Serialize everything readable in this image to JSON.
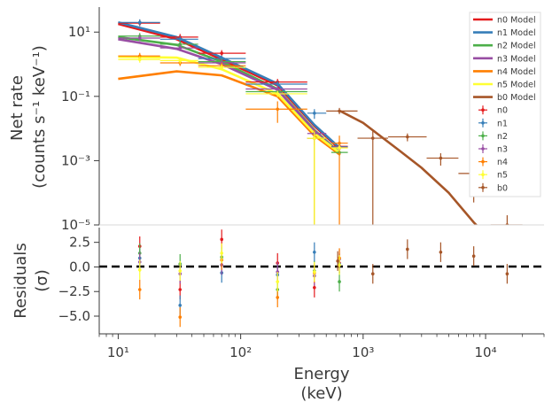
{
  "chart_data": [
    {
      "type": "scatter",
      "panel": "top",
      "title": "",
      "ylabel": [
        "Net rate",
        "(counts s⁻¹ keV⁻¹)"
      ],
      "xscale": "log",
      "yscale": "log",
      "xlim": [
        7,
        30000
      ],
      "ylim": [
        1e-05,
        60
      ],
      "yticks": [
        {
          "v": 10,
          "label": "10¹"
        },
        {
          "v": 0.1,
          "label": "10⁻¹"
        },
        {
          "v": 0.001,
          "label": "10⁻³"
        },
        {
          "v": 1e-05,
          "label": "10⁻⁵"
        }
      ],
      "legend": {
        "placement": "upper-right",
        "entries": [
          "n0 Model",
          "n1 Model",
          "n2 Model",
          "n3 Model",
          "n4 Model",
          "n5 Model",
          "b0 Model",
          "n0",
          "n1",
          "n2",
          "n3",
          "n4",
          "n5",
          "b0"
        ]
      },
      "models": [
        {
          "name": "n0 Model",
          "color": "#e41a1c",
          "x": [
            10,
            30,
            70,
            200,
            400,
            650
          ],
          "y": [
            18,
            6,
            1.4,
            0.22,
            0.012,
            0.0022
          ]
        },
        {
          "name": "n1 Model",
          "color": "#377eb8",
          "x": [
            10,
            30,
            70,
            200,
            400,
            650
          ],
          "y": [
            20,
            7,
            1.6,
            0.25,
            0.013,
            0.0024
          ]
        },
        {
          "name": "n2 Model",
          "color": "#4daf4a",
          "x": [
            10,
            30,
            70,
            200,
            400,
            650
          ],
          "y": [
            7,
            4,
            1.2,
            0.17,
            0.009,
            0.0017
          ]
        },
        {
          "name": "n3 Model",
          "color": "#984ea3",
          "x": [
            10,
            30,
            70,
            200,
            400,
            650
          ],
          "y": [
            6,
            3,
            1.0,
            0.16,
            0.0085,
            0.0016
          ]
        },
        {
          "name": "n4 Model",
          "color": "#ff7f00",
          "x": [
            10,
            30,
            70,
            200,
            400,
            650
          ],
          "y": [
            0.35,
            0.6,
            0.45,
            0.1,
            0.006,
            0.0015
          ]
        },
        {
          "name": "n5 Model",
          "color": "#ffff33",
          "x": [
            10,
            30,
            70,
            200,
            400,
            650
          ],
          "y": [
            1.7,
            1.6,
            0.7,
            0.12,
            0.007,
            0.0017
          ]
        },
        {
          "name": "b0 Model",
          "color": "#a65628",
          "x": [
            650,
            1000,
            2000,
            3000,
            5000,
            8000,
            15000
          ],
          "y": [
            0.035,
            0.015,
            0.002,
            0.0006,
            0.0001,
            1.2e-05,
            1e-06
          ]
        }
      ],
      "points": [
        {
          "series": "n0",
          "color": "#e41a1c",
          "x": 15,
          "xlo": 10,
          "xhi": 22,
          "y": 19
        },
        {
          "series": "n0",
          "color": "#e41a1c",
          "x": 32,
          "xlo": 22,
          "xhi": 45,
          "y": 7
        },
        {
          "series": "n0",
          "color": "#e41a1c",
          "x": 70,
          "xlo": 45,
          "xhi": 110,
          "y": 2.2
        },
        {
          "series": "n0",
          "color": "#e41a1c",
          "x": 200,
          "xlo": 110,
          "xhi": 350,
          "y": 0.28
        },
        {
          "series": "n0",
          "color": "#e41a1c",
          "x": 400,
          "xlo": 350,
          "xhi": 500,
          "y": 0.005,
          "ylo": 0.003,
          "yhi": 0.008
        },
        {
          "series": "n0",
          "color": "#e41a1c",
          "x": 640,
          "xlo": 550,
          "xhi": 750,
          "y": 0.0028
        },
        {
          "series": "n1",
          "color": "#377eb8",
          "x": 15,
          "xlo": 10,
          "xhi": 22,
          "y": 20
        },
        {
          "series": "n1",
          "color": "#377eb8",
          "x": 32,
          "xlo": 22,
          "xhi": 45,
          "y": 6
        },
        {
          "series": "n1",
          "color": "#377eb8",
          "x": 70,
          "xlo": 45,
          "xhi": 110,
          "y": 1.5
        },
        {
          "series": "n1",
          "color": "#377eb8",
          "x": 200,
          "xlo": 110,
          "xhi": 350,
          "y": 0.24
        },
        {
          "series": "n1",
          "color": "#377eb8",
          "x": 400,
          "xlo": 350,
          "xhi": 500,
          "y": 0.03,
          "ylo": 0.02,
          "yhi": 0.04
        },
        {
          "series": "n1",
          "color": "#377eb8",
          "x": 640,
          "xlo": 550,
          "xhi": 750,
          "y": 0.0027
        },
        {
          "series": "n2",
          "color": "#4daf4a",
          "x": 15,
          "xlo": 10,
          "xhi": 22,
          "y": 7.5
        },
        {
          "series": "n2",
          "color": "#4daf4a",
          "x": 32,
          "xlo": 22,
          "xhi": 45,
          "y": 4.2
        },
        {
          "series": "n2",
          "color": "#4daf4a",
          "x": 70,
          "xlo": 45,
          "xhi": 110,
          "y": 1.2
        },
        {
          "series": "n2",
          "color": "#4daf4a",
          "x": 200,
          "xlo": 110,
          "xhi": 350,
          "y": 0.14
        },
        {
          "series": "n2",
          "color": "#4daf4a",
          "x": 400,
          "xlo": 350,
          "xhi": 500,
          "y": 0.005,
          "ylo": 1e-05,
          "yhi": 0.008
        },
        {
          "series": "n2",
          "color": "#4daf4a",
          "x": 640,
          "xlo": 550,
          "xhi": 750,
          "y": 0.0018
        },
        {
          "series": "n3",
          "color": "#984ea3",
          "x": 15,
          "xlo": 10,
          "xhi": 22,
          "y": 6.5
        },
        {
          "series": "n3",
          "color": "#984ea3",
          "x": 32,
          "xlo": 22,
          "xhi": 45,
          "y": 3.2
        },
        {
          "series": "n3",
          "color": "#984ea3",
          "x": 70,
          "xlo": 45,
          "xhi": 110,
          "y": 1.1
        },
        {
          "series": "n3",
          "color": "#984ea3",
          "x": 200,
          "xlo": 110,
          "xhi": 350,
          "y": 0.17
        },
        {
          "series": "n3",
          "color": "#984ea3",
          "x": 400,
          "xlo": 350,
          "xhi": 500,
          "y": 0.007,
          "ylo": 0.004,
          "yhi": 0.01
        },
        {
          "series": "n3",
          "color": "#984ea3",
          "x": 640,
          "xlo": 550,
          "xhi": 750,
          "y": 0.0026
        },
        {
          "series": "n4",
          "color": "#ff7f00",
          "x": 15,
          "xlo": 10,
          "xhi": 22,
          "y": 1.8
        },
        {
          "series": "n4",
          "color": "#ff7f00",
          "x": 32,
          "xlo": 22,
          "xhi": 45,
          "y": 1.1
        },
        {
          "series": "n4",
          "color": "#ff7f00",
          "x": 70,
          "xlo": 45,
          "xhi": 110,
          "y": 0.9
        },
        {
          "series": "n4",
          "color": "#ff7f00",
          "x": 200,
          "xlo": 110,
          "xhi": 350,
          "y": 0.04,
          "ylo": 0.015,
          "yhi": 0.07
        },
        {
          "series": "n4",
          "color": "#ff7f00",
          "x": 400,
          "xlo": 350,
          "xhi": 500,
          "y": 0.005,
          "ylo": 1e-05,
          "yhi": 0.009
        },
        {
          "series": "n4",
          "color": "#ff7f00",
          "x": 640,
          "xlo": 550,
          "xhi": 750,
          "y": 0.0035,
          "ylo": 1e-05,
          "yhi": 0.006
        },
        {
          "series": "n5",
          "color": "#ffff33",
          "x": 15,
          "xlo": 10,
          "xhi": 22,
          "y": 1.4
        },
        {
          "series": "n5",
          "color": "#ffff33",
          "x": 32,
          "xlo": 22,
          "xhi": 45,
          "y": 1.3
        },
        {
          "series": "n5",
          "color": "#ffff33",
          "x": 70,
          "xlo": 45,
          "xhi": 110,
          "y": 0.8
        },
        {
          "series": "n5",
          "color": "#ffff33",
          "x": 200,
          "xlo": 110,
          "xhi": 350,
          "y": 0.12
        },
        {
          "series": "n5",
          "color": "#ffff33",
          "x": 400,
          "xlo": 350,
          "xhi": 500,
          "y": 0.005,
          "ylo": 1e-05,
          "yhi": 0.008
        },
        {
          "series": "n5",
          "color": "#ffff33",
          "x": 640,
          "xlo": 550,
          "xhi": 750,
          "y": 0.0025
        },
        {
          "series": "b0",
          "color": "#a65628",
          "x": 640,
          "xlo": 500,
          "xhi": 900,
          "y": 0.035
        },
        {
          "series": "b0",
          "color": "#a65628",
          "x": 1200,
          "xlo": 900,
          "xhi": 1600,
          "y": 0.005,
          "ylo": 1e-05,
          "yhi": 0.009
        },
        {
          "series": "b0",
          "color": "#a65628",
          "x": 2300,
          "xlo": 1600,
          "xhi": 3300,
          "y": 0.0055,
          "ylo": 0.004,
          "yhi": 0.007
        },
        {
          "series": "b0",
          "color": "#a65628",
          "x": 4300,
          "xlo": 3300,
          "xhi": 6000,
          "y": 0.0012,
          "ylo": 0.0007,
          "yhi": 0.0017
        },
        {
          "series": "b0",
          "color": "#a65628",
          "x": 8000,
          "xlo": 6000,
          "xhi": 11000,
          "y": 0.0004,
          "ylo": 5e-05,
          "yhi": 0.0007
        },
        {
          "series": "b0",
          "color": "#a65628",
          "x": 15000,
          "xlo": 11000,
          "xhi": 20000,
          "y": 1e-05,
          "ylo": 1e-05,
          "yhi": 2e-05
        }
      ]
    },
    {
      "type": "scatter",
      "panel": "bottom",
      "title": "",
      "xlabel": [
        "Energy",
        "(keV)"
      ],
      "ylabel": [
        "Residuals",
        "(σ)"
      ],
      "xscale": "log",
      "xlim": [
        7,
        30000
      ],
      "ylim": [
        -6.8,
        4.0
      ],
      "yticks": [
        {
          "v": 2.5,
          "label": "2.5"
        },
        {
          "v": 0.0,
          "label": "0.0"
        },
        {
          "v": -2.5,
          "label": "−2.5"
        },
        {
          "v": -5.0,
          "label": "−5.0"
        }
      ],
      "xticks": [
        {
          "v": 10,
          "label": "10¹"
        },
        {
          "v": 100,
          "label": "10²"
        },
        {
          "v": 1000,
          "label": "10³"
        },
        {
          "v": 10000,
          "label": "10⁴"
        }
      ],
      "reference_line": 0,
      "points": [
        {
          "series": "n0",
          "color": "#e41a1c",
          "x": 15,
          "y": 2.1
        },
        {
          "series": "n1",
          "color": "#377eb8",
          "x": 15,
          "y": 0.9
        },
        {
          "series": "n2",
          "color": "#4daf4a",
          "x": 15,
          "y": 1.4
        },
        {
          "series": "n3",
          "color": "#984ea3",
          "x": 15,
          "y": 0.5
        },
        {
          "series": "n4",
          "color": "#ff7f00",
          "x": 15,
          "y": -2.3
        },
        {
          "series": "n5",
          "color": "#ffff33",
          "x": 15,
          "y": -0.3
        },
        {
          "series": "n0",
          "color": "#e41a1c",
          "x": 32,
          "y": -2.3
        },
        {
          "series": "n1",
          "color": "#377eb8",
          "x": 32,
          "y": -3.9
        },
        {
          "series": "n2",
          "color": "#4daf4a",
          "x": 32,
          "y": 0.3
        },
        {
          "series": "n3",
          "color": "#984ea3",
          "x": 32,
          "y": -0.7
        },
        {
          "series": "n4",
          "color": "#ff7f00",
          "x": 32,
          "y": -5.1
        },
        {
          "series": "n5",
          "color": "#ffff33",
          "x": 32,
          "y": -0.4
        },
        {
          "series": "n0",
          "color": "#e41a1c",
          "x": 70,
          "y": 2.8
        },
        {
          "series": "n1",
          "color": "#377eb8",
          "x": 70,
          "y": -0.6
        },
        {
          "series": "n2",
          "color": "#4daf4a",
          "x": 70,
          "y": 1.0
        },
        {
          "series": "n3",
          "color": "#984ea3",
          "x": 70,
          "y": 0.2
        },
        {
          "series": "n4",
          "color": "#ff7f00",
          "x": 70,
          "y": 0.7
        },
        {
          "series": "n5",
          "color": "#ffff33",
          "x": 70,
          "y": 1.4
        },
        {
          "series": "n0",
          "color": "#e41a1c",
          "x": 200,
          "y": 0.4
        },
        {
          "series": "n1",
          "color": "#377eb8",
          "x": 200,
          "y": -0.8
        },
        {
          "series": "n2",
          "color": "#4daf4a",
          "x": 200,
          "y": -2.3
        },
        {
          "series": "n3",
          "color": "#984ea3",
          "x": 200,
          "y": -0.5
        },
        {
          "series": "n4",
          "color": "#ff7f00",
          "x": 200,
          "y": -3.1
        },
        {
          "series": "n5",
          "color": "#ffff33",
          "x": 200,
          "y": -1.5
        },
        {
          "series": "n0",
          "color": "#e41a1c",
          "x": 400,
          "y": -2.1
        },
        {
          "series": "n1",
          "color": "#377eb8",
          "x": 400,
          "y": 1.5
        },
        {
          "series": "n2",
          "color": "#4daf4a",
          "x": 400,
          "y": -0.4
        },
        {
          "series": "n3",
          "color": "#984ea3",
          "x": 400,
          "y": -0.9
        },
        {
          "series": "n4",
          "color": "#ff7f00",
          "x": 400,
          "y": -0.6
        },
        {
          "series": "n5",
          "color": "#ffff33",
          "x": 400,
          "y": -0.5
        },
        {
          "series": "n0",
          "color": "#e41a1c",
          "x": 640,
          "y": 0.4
        },
        {
          "series": "n1",
          "color": "#377eb8",
          "x": 640,
          "y": 0.3
        },
        {
          "series": "n2",
          "color": "#4daf4a",
          "x": 640,
          "y": -1.5
        },
        {
          "series": "n3",
          "color": "#984ea3",
          "x": 640,
          "y": 0.8
        },
        {
          "series": "n4",
          "color": "#ff7f00",
          "x": 640,
          "y": 0.9
        },
        {
          "series": "n5",
          "color": "#ffff33",
          "x": 640,
          "y": 0.2
        },
        {
          "series": "b0",
          "color": "#a65628",
          "x": 620,
          "y": 0.6
        },
        {
          "series": "b0",
          "color": "#a65628",
          "x": 1200,
          "y": -0.7
        },
        {
          "series": "b0",
          "color": "#a65628",
          "x": 2300,
          "y": 1.8
        },
        {
          "series": "b0",
          "color": "#a65628",
          "x": 4300,
          "y": 1.5
        },
        {
          "series": "b0",
          "color": "#a65628",
          "x": 8000,
          "y": 1.1
        },
        {
          "series": "b0",
          "color": "#a65628",
          "x": 15000,
          "y": -0.7
        }
      ]
    }
  ]
}
